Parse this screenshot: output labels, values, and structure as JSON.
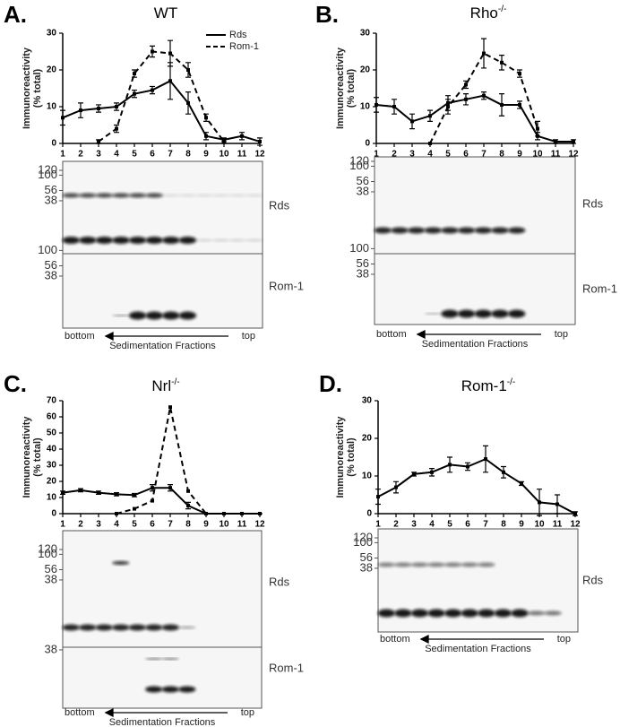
{
  "chart_data": [
    {
      "type": "line",
      "panel_label": "A.",
      "title": "WT",
      "ylabel": [
        "Immunoreactivity",
        "(% total)"
      ],
      "x": [
        1,
        2,
        3,
        4,
        5,
        6,
        7,
        8,
        9,
        10,
        11,
        12
      ],
      "xlim": [
        1,
        12
      ],
      "xticks": [
        1,
        2,
        3,
        4,
        5,
        6,
        7,
        8,
        9,
        10,
        11,
        12
      ],
      "ylim": [
        0,
        30
      ],
      "yticks": [
        0,
        10,
        20,
        30
      ],
      "legend": "top right",
      "series": [
        {
          "name": "Rds",
          "color": "#000000",
          "dash": false,
          "values": [
            7,
            9,
            9.5,
            10,
            13.5,
            14.5,
            17,
            11,
            2,
            1,
            2,
            0.5
          ],
          "errors": [
            2,
            2,
            1,
            1,
            1,
            1,
            5,
            3,
            1,
            0.5,
            1,
            1
          ]
        },
        {
          "name": "Rom-1",
          "color": "#000000",
          "dash": true,
          "values": [
            null,
            null,
            0.5,
            4,
            19,
            25,
            24.5,
            20,
            7,
            0.5,
            null,
            null
          ],
          "errors": [
            null,
            null,
            0.5,
            1,
            1,
            1.5,
            3.5,
            2,
            1,
            0.5,
            null,
            null
          ]
        }
      ],
      "blots": [
        {
          "label": "Rds",
          "markers": [
            120,
            100,
            56,
            38
          ]
        },
        {
          "label": "Rom-1",
          "markers": [
            100,
            56,
            38
          ]
        }
      ],
      "blot_axis": {
        "start": "bottom",
        "end": "top",
        "label": "Sedimentation Fractions"
      }
    },
    {
      "type": "line",
      "panel_label": "B.",
      "title": "Rho",
      "title_superscript": "-/-",
      "ylabel": [
        "Immunoreactivity",
        "(% total)"
      ],
      "x": [
        1,
        2,
        3,
        4,
        5,
        6,
        7,
        8,
        9,
        10,
        11,
        12
      ],
      "xlim": [
        1,
        12
      ],
      "xticks": [
        1,
        2,
        3,
        4,
        5,
        6,
        7,
        8,
        9,
        10,
        11,
        12
      ],
      "ylim": [
        0,
        30
      ],
      "yticks": [
        0,
        10,
        20,
        30
      ],
      "series": [
        {
          "color": "#000000",
          "dash": false,
          "values": [
            10.5,
            10,
            6,
            7.5,
            11,
            12,
            13,
            10.5,
            10.5,
            2,
            0.5,
            0.5
          ],
          "errors": [
            2,
            2,
            2,
            1.5,
            2,
            1.5,
            1,
            3,
            1,
            1,
            0.5,
            0.5
          ]
        },
        {
          "color": "#000000",
          "dash": true,
          "values": [
            null,
            null,
            null,
            0,
            10,
            16,
            24.5,
            22,
            19,
            4,
            null,
            null
          ],
          "errors": [
            null,
            null,
            null,
            0,
            2,
            1,
            4,
            2,
            1,
            2,
            null,
            null
          ]
        }
      ],
      "blots": [
        {
          "label": "Rds",
          "markers": [
            120,
            100,
            56,
            38
          ]
        },
        {
          "label": "Rom-1",
          "markers": [
            100,
            56,
            38
          ]
        }
      ],
      "blot_axis": {
        "start": "bottom",
        "end": "top",
        "label": "Sedimentation Fractions"
      }
    },
    {
      "type": "line",
      "panel_label": "C.",
      "title": "Nrl",
      "title_superscript": "-/-",
      "ylabel": [
        "Immunoreactivity",
        "(% total)"
      ],
      "x": [
        1,
        2,
        3,
        4,
        5,
        6,
        7,
        8,
        9,
        10,
        11,
        12
      ],
      "xlim": [
        1,
        12
      ],
      "xticks": [
        1,
        2,
        3,
        4,
        5,
        6,
        7,
        8,
        9,
        10,
        11,
        12
      ],
      "ylim": [
        0,
        70
      ],
      "yticks": [
        0,
        10,
        20,
        30,
        40,
        50,
        60,
        70
      ],
      "series": [
        {
          "color": "#000000",
          "dash": false,
          "values": [
            13,
            14.5,
            13,
            12,
            11.5,
            16,
            16,
            5,
            0,
            0,
            0,
            0
          ],
          "errors": [
            1,
            1,
            1,
            1,
            1,
            2,
            2,
            2,
            0,
            0,
            0,
            0
          ]
        },
        {
          "color": "#000000",
          "dash": true,
          "values": [
            null,
            null,
            null,
            0,
            3,
            8,
            66,
            14,
            0,
            null,
            null,
            null
          ]
        }
      ],
      "blots": [
        {
          "label": "Rds",
          "markers": [
            120,
            100,
            56,
            38
          ]
        },
        {
          "label": "Rom-1",
          "markers": [
            38
          ]
        }
      ],
      "blot_axis": {
        "start": "bottom",
        "end": "top",
        "label": "Sedimentation Fractions"
      }
    },
    {
      "type": "line",
      "panel_label": "D.",
      "title": "Rom-1",
      "title_superscript": "-/-",
      "ylabel": [
        "Immunoreactivity",
        "(% total)"
      ],
      "x": [
        1,
        2,
        3,
        4,
        5,
        6,
        7,
        8,
        9,
        10,
        11,
        12
      ],
      "xlim": [
        1,
        12
      ],
      "xticks": [
        1,
        2,
        3,
        4,
        5,
        6,
        7,
        8,
        9,
        10,
        11,
        12
      ],
      "ylim": [
        0,
        30
      ],
      "yticks": [
        0,
        10,
        20,
        30
      ],
      "series": [
        {
          "color": "#000000",
          "dash": false,
          "values": [
            4.5,
            7,
            10.5,
            11,
            13,
            12.5,
            14.5,
            11,
            8,
            3,
            2.5,
            0
          ],
          "errors": [
            2,
            1.5,
            0.5,
            1,
            2,
            1,
            3.5,
            1.5,
            0.5,
            3.5,
            2.5,
            0.5
          ]
        }
      ],
      "blots": [
        {
          "label": "Rds",
          "markers": [
            120,
            100,
            56,
            38
          ]
        }
      ],
      "blot_axis": {
        "start": "bottom",
        "end": "top",
        "label": "Sedimentation Fractions"
      }
    }
  ]
}
